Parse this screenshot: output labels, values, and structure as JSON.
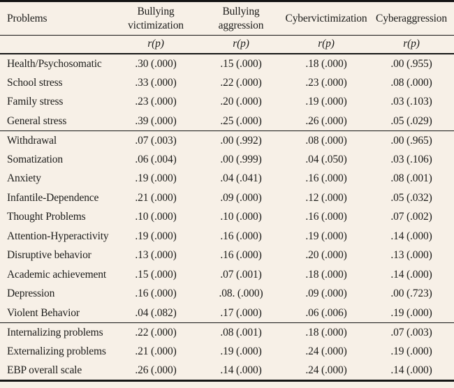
{
  "page": {
    "background_color": "#f7f0e7",
    "rule_color": "#151515",
    "text_color": "#1c1c1a"
  },
  "table": {
    "columns": [
      "Problems",
      "Bullying victimization",
      "Bullying aggression",
      "Cybervictimization",
      "Cyberaggression"
    ],
    "stat_label": "r(p)",
    "groups": [
      {
        "rows": [
          {
            "problem": "Health/Psychosomatic",
            "values": [
              ".30 (.000)",
              ".15 (.000)",
              ".18 (.000)",
              ".00 (.955)"
            ]
          },
          {
            "problem": "School stress",
            "values": [
              ".33 (.000)",
              ".22 (.000)",
              ".23 (.000)",
              ".08 (.000)"
            ]
          },
          {
            "problem": "Family stress",
            "values": [
              ".23 (.000)",
              ".20 (.000)",
              ".19 (.000)",
              ".03 (.103)"
            ]
          },
          {
            "problem": "General stress",
            "values": [
              ".39 (.000)",
              ".25 (.000)",
              ".26 (.000)",
              ".05 (.029)"
            ]
          }
        ]
      },
      {
        "rows": [
          {
            "problem": "Withdrawal",
            "values": [
              ".07 (.003)",
              ".00 (.992)",
              ".08 (.000)",
              ".00 (.965)"
            ]
          },
          {
            "problem": "Somatization",
            "values": [
              ".06 (.004)",
              ".00 (.999)",
              ".04 (.050)",
              ".03 (.106)"
            ]
          },
          {
            "problem": "Anxiety",
            "values": [
              ".19 (.000)",
              ".04 (.041)",
              ".16 (.000)",
              ".08 (.001)"
            ]
          },
          {
            "problem": "Infantile-Dependence",
            "values": [
              ".21 (.000)",
              ".09 (.000)",
              ".12 (.000)",
              ".05 (.032)"
            ]
          },
          {
            "problem": "Thought Problems",
            "values": [
              ".10 (.000)",
              ".10 (.000)",
              ".16 (.000)",
              ".07 (.002)"
            ]
          },
          {
            "problem": "Attention-Hyperactivity",
            "values": [
              ".19 (.000)",
              ".16 (.000)",
              ".19 (.000)",
              ".14 (.000)"
            ]
          },
          {
            "problem": "Disruptive behavior",
            "values": [
              ".13 (.000)",
              ".16 (.000)",
              ".20 (.000)",
              ".13 (.000)"
            ]
          },
          {
            "problem": "Academic achievement",
            "values": [
              ".15 (.000)",
              ".07 (.001)",
              ".18 (.000)",
              ".14 (.000)"
            ]
          },
          {
            "problem": "Depression",
            "values": [
              ".16 (.000)",
              ".08. (.000)",
              ".09 (.000)",
              ".00 (.723)"
            ]
          },
          {
            "problem": "Violent Behavior",
            "values": [
              ".04 (.082)",
              ".17 (.000)",
              ".06 (.006)",
              ".19 (.000)"
            ]
          }
        ]
      },
      {
        "rows": [
          {
            "problem": "Internalizing problems",
            "values": [
              ".22 (.000)",
              ".08 (.001)",
              ".18 (.000)",
              ".07 (.003)"
            ]
          },
          {
            "problem": "Externalizing problems",
            "values": [
              ".21 (.000)",
              ".19 (.000)",
              ".24 (.000)",
              ".19 (.000)"
            ]
          },
          {
            "problem": "EBP overall scale",
            "values": [
              ".26 (.000)",
              ".14 (.000)",
              ".24 (.000)",
              ".14 (.000)"
            ]
          }
        ]
      }
    ]
  }
}
